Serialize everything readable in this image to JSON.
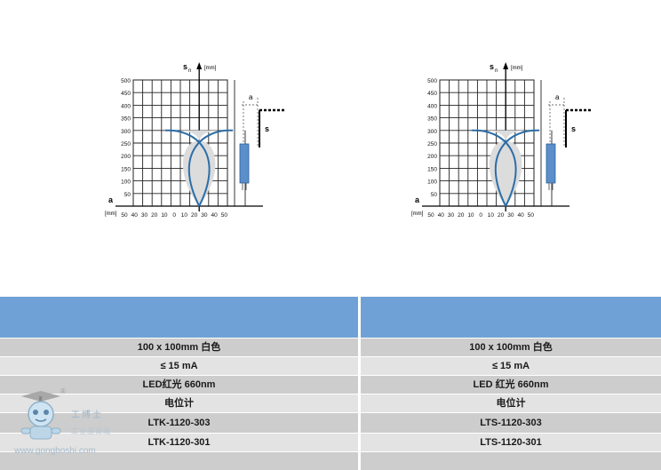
{
  "charts": [
    {
      "sn_label": "s",
      "sn_sub": "n",
      "y_unit": "[mm]",
      "x_axis_label": "a",
      "x_unit": "[mm]",
      "y_ticks": [
        "500",
        "450",
        "400",
        "350",
        "300",
        "250",
        "200",
        "150",
        "100",
        "50"
      ],
      "x_ticks": [
        "50",
        "40",
        "30",
        "20",
        "10",
        "0",
        "10",
        "20",
        "30",
        "40",
        "50"
      ],
      "diagram_a_label": "a",
      "diagram_s_label": "s"
    },
    {
      "sn_label": "s",
      "sn_sub": "n",
      "y_unit": "[mm]",
      "x_axis_label": "a",
      "x_unit": "[mm]",
      "y_ticks": [
        "500",
        "450",
        "400",
        "350",
        "300",
        "250",
        "200",
        "150",
        "100",
        "50"
      ],
      "x_ticks": [
        "50",
        "40",
        "30",
        "20",
        "10",
        "0",
        "10",
        "20",
        "30",
        "40",
        "50"
      ],
      "diagram_a_label": "a",
      "diagram_s_label": "s"
    }
  ],
  "table": {
    "left": {
      "rows": [
        "100 x 100mm 白色",
        "≤ 15 mA",
        "LED红光 660nm",
        "电位计",
        "LTK-1120-303",
        "LTK-1120-301"
      ]
    },
    "right": {
      "rows": [
        "100 x 100mm 白色",
        "≤ 15 mA",
        "LED 红光 660nm",
        "电位计",
        "LTS-1120-303",
        "LTS-1120-301"
      ]
    }
  },
  "watermark": {
    "brand_cn": "工博士",
    "brand_sub": "工业品商城",
    "url": "www.gongboshi.com",
    "reg": "®"
  },
  "colors": {
    "header_blue": "#6fa1d7",
    "row_shade": "#cdcdcd",
    "row_light": "#e3e3e3",
    "curve_blue": "#2d6ea8",
    "fill_gray": "#dcdcdc"
  }
}
